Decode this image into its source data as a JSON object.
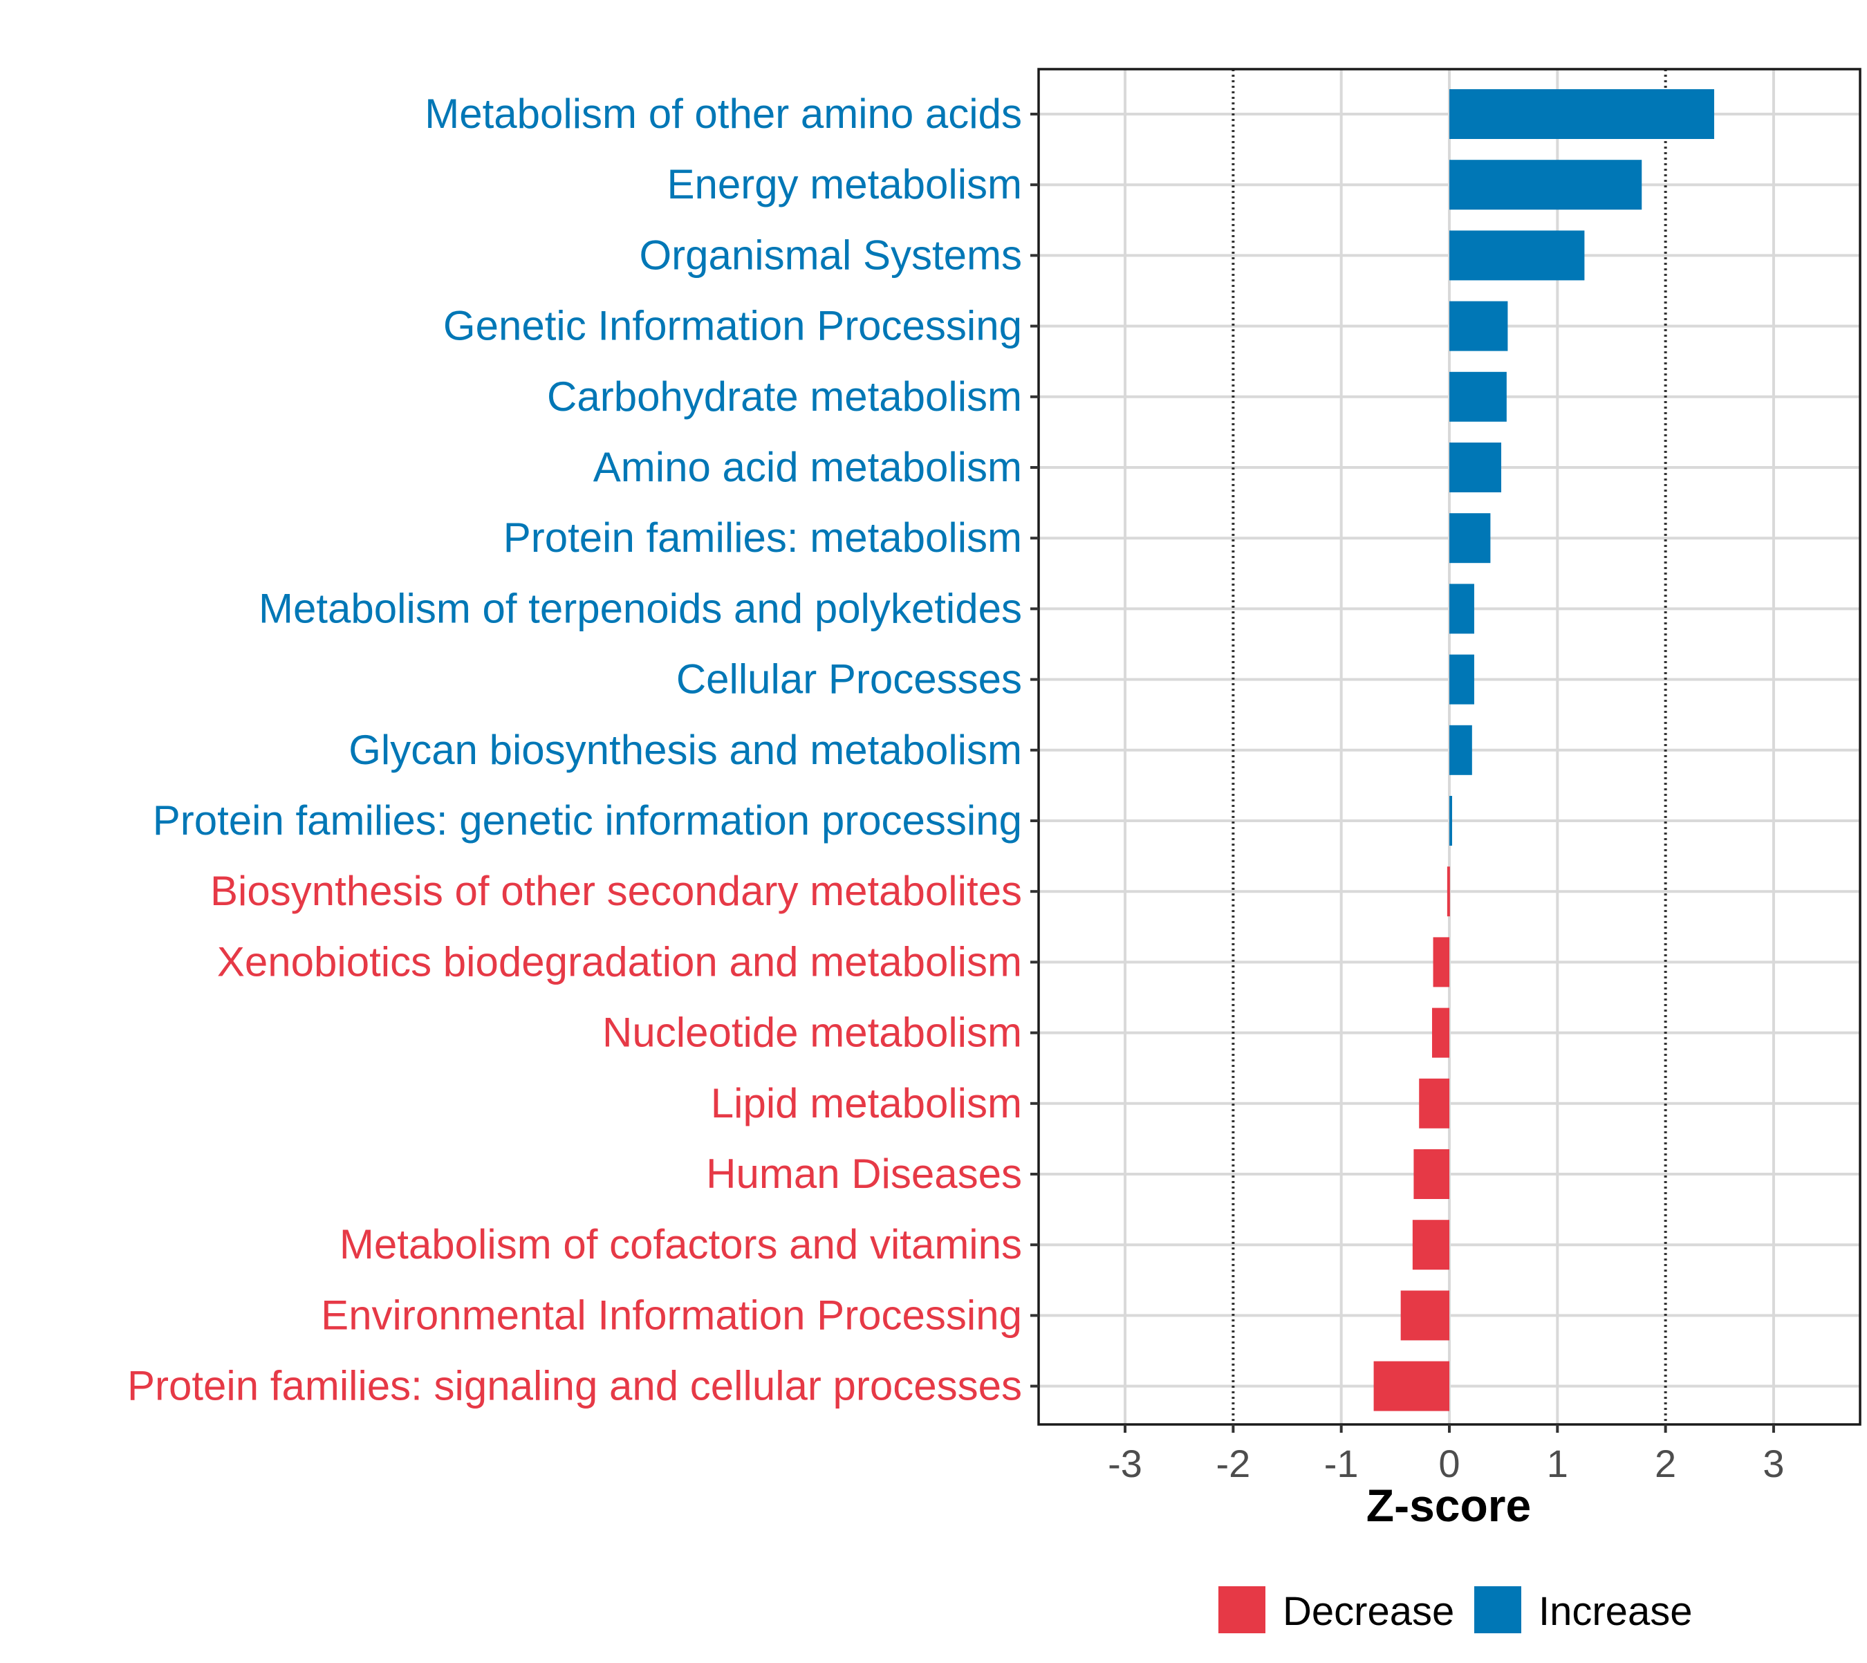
{
  "chart_data": {
    "type": "bar",
    "orientation": "horizontal",
    "title": "",
    "xlabel": "Z-score",
    "ylabel": "",
    "xlim": [
      -3.8,
      3.8
    ],
    "xticks": [
      -3,
      -2,
      -1,
      0,
      1,
      2,
      3
    ],
    "xtick_labels": [
      "-3",
      "-2",
      "-1",
      "0",
      "1",
      "2",
      "3"
    ],
    "threshold_lines": [
      -2,
      2
    ],
    "grid": true,
    "legend_position": "bottom",
    "categories": [
      "Metabolism of other amino acids",
      "Energy metabolism",
      "Organismal Systems",
      "Genetic Information Processing",
      "Carbohydrate metabolism",
      "Amino acid metabolism",
      "Protein families: metabolism",
      "Metabolism of terpenoids and polyketides",
      "Cellular Processes",
      "Glycan biosynthesis and metabolism",
      "Protein families: genetic information processing",
      "Biosynthesis of other secondary metabolites",
      "Xenobiotics biodegradation and metabolism",
      "Nucleotide metabolism",
      "Lipid metabolism",
      "Human Diseases",
      "Metabolism of cofactors and vitamins",
      "Environmental Information Processing",
      "Protein families: signaling and cellular processes"
    ],
    "values": [
      2.45,
      1.78,
      1.25,
      0.54,
      0.53,
      0.48,
      0.38,
      0.23,
      0.23,
      0.21,
      0.02,
      -0.02,
      -0.15,
      -0.16,
      -0.28,
      -0.33,
      -0.34,
      -0.45,
      -0.7
    ],
    "groups": [
      "Increase",
      "Increase",
      "Increase",
      "Increase",
      "Increase",
      "Increase",
      "Increase",
      "Increase",
      "Increase",
      "Increase",
      "Increase",
      "Decrease",
      "Decrease",
      "Decrease",
      "Decrease",
      "Decrease",
      "Decrease",
      "Decrease",
      "Decrease"
    ],
    "legend": [
      {
        "name": "Decrease",
        "color": "#E63946"
      },
      {
        "name": "Increase",
        "color": "#0077B6"
      }
    ]
  },
  "colors": {
    "increase": "#0077B6",
    "decrease": "#E63946",
    "grid": "#D9D9D9",
    "axis_text": "#4D4D4D",
    "border": "#1a1a1a"
  }
}
